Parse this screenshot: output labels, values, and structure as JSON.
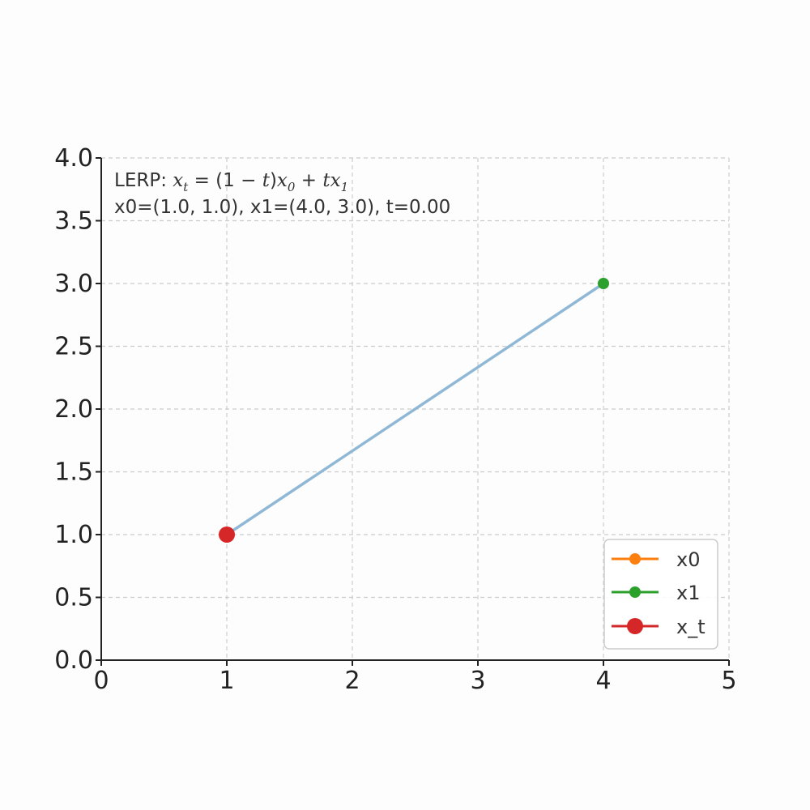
{
  "chart_data": {
    "type": "line",
    "xlim": [
      0,
      5
    ],
    "ylim": [
      0,
      4
    ],
    "x_ticks": [
      "0",
      "1",
      "2",
      "3",
      "4",
      "5"
    ],
    "y_ticks": [
      "0.0",
      "0.5",
      "1.0",
      "1.5",
      "2.0",
      "2.5",
      "3.0",
      "3.5",
      "4.0"
    ],
    "grid": true,
    "legend_position": "bottom-right",
    "annotation": {
      "prefix": "LERP: ",
      "math": {
        "lhs": "x",
        "lhs_sub": "t",
        "eq": " = (1 − ",
        "t1": "t",
        "mid": ")",
        "x0": "x",
        "x0_sub": "0",
        "plus": " + ",
        "tx": "tx",
        "x1_sub": "1"
      },
      "line2": "x0=(1.0, 1.0), x1=(4.0, 3.0), t=0.00"
    },
    "segment": {
      "from": [
        1.0,
        1.0
      ],
      "to": [
        4.0,
        3.0
      ],
      "color": "#8fb8d6"
    },
    "series": [
      {
        "name": "x0",
        "x": 1.0,
        "y": 1.0,
        "color": "#ff7f0e"
      },
      {
        "name": "x1",
        "x": 4.0,
        "y": 3.0,
        "color": "#2ca02c"
      },
      {
        "name": "x_t",
        "x": 1.0,
        "y": 1.0,
        "color": "#d62728"
      }
    ]
  }
}
